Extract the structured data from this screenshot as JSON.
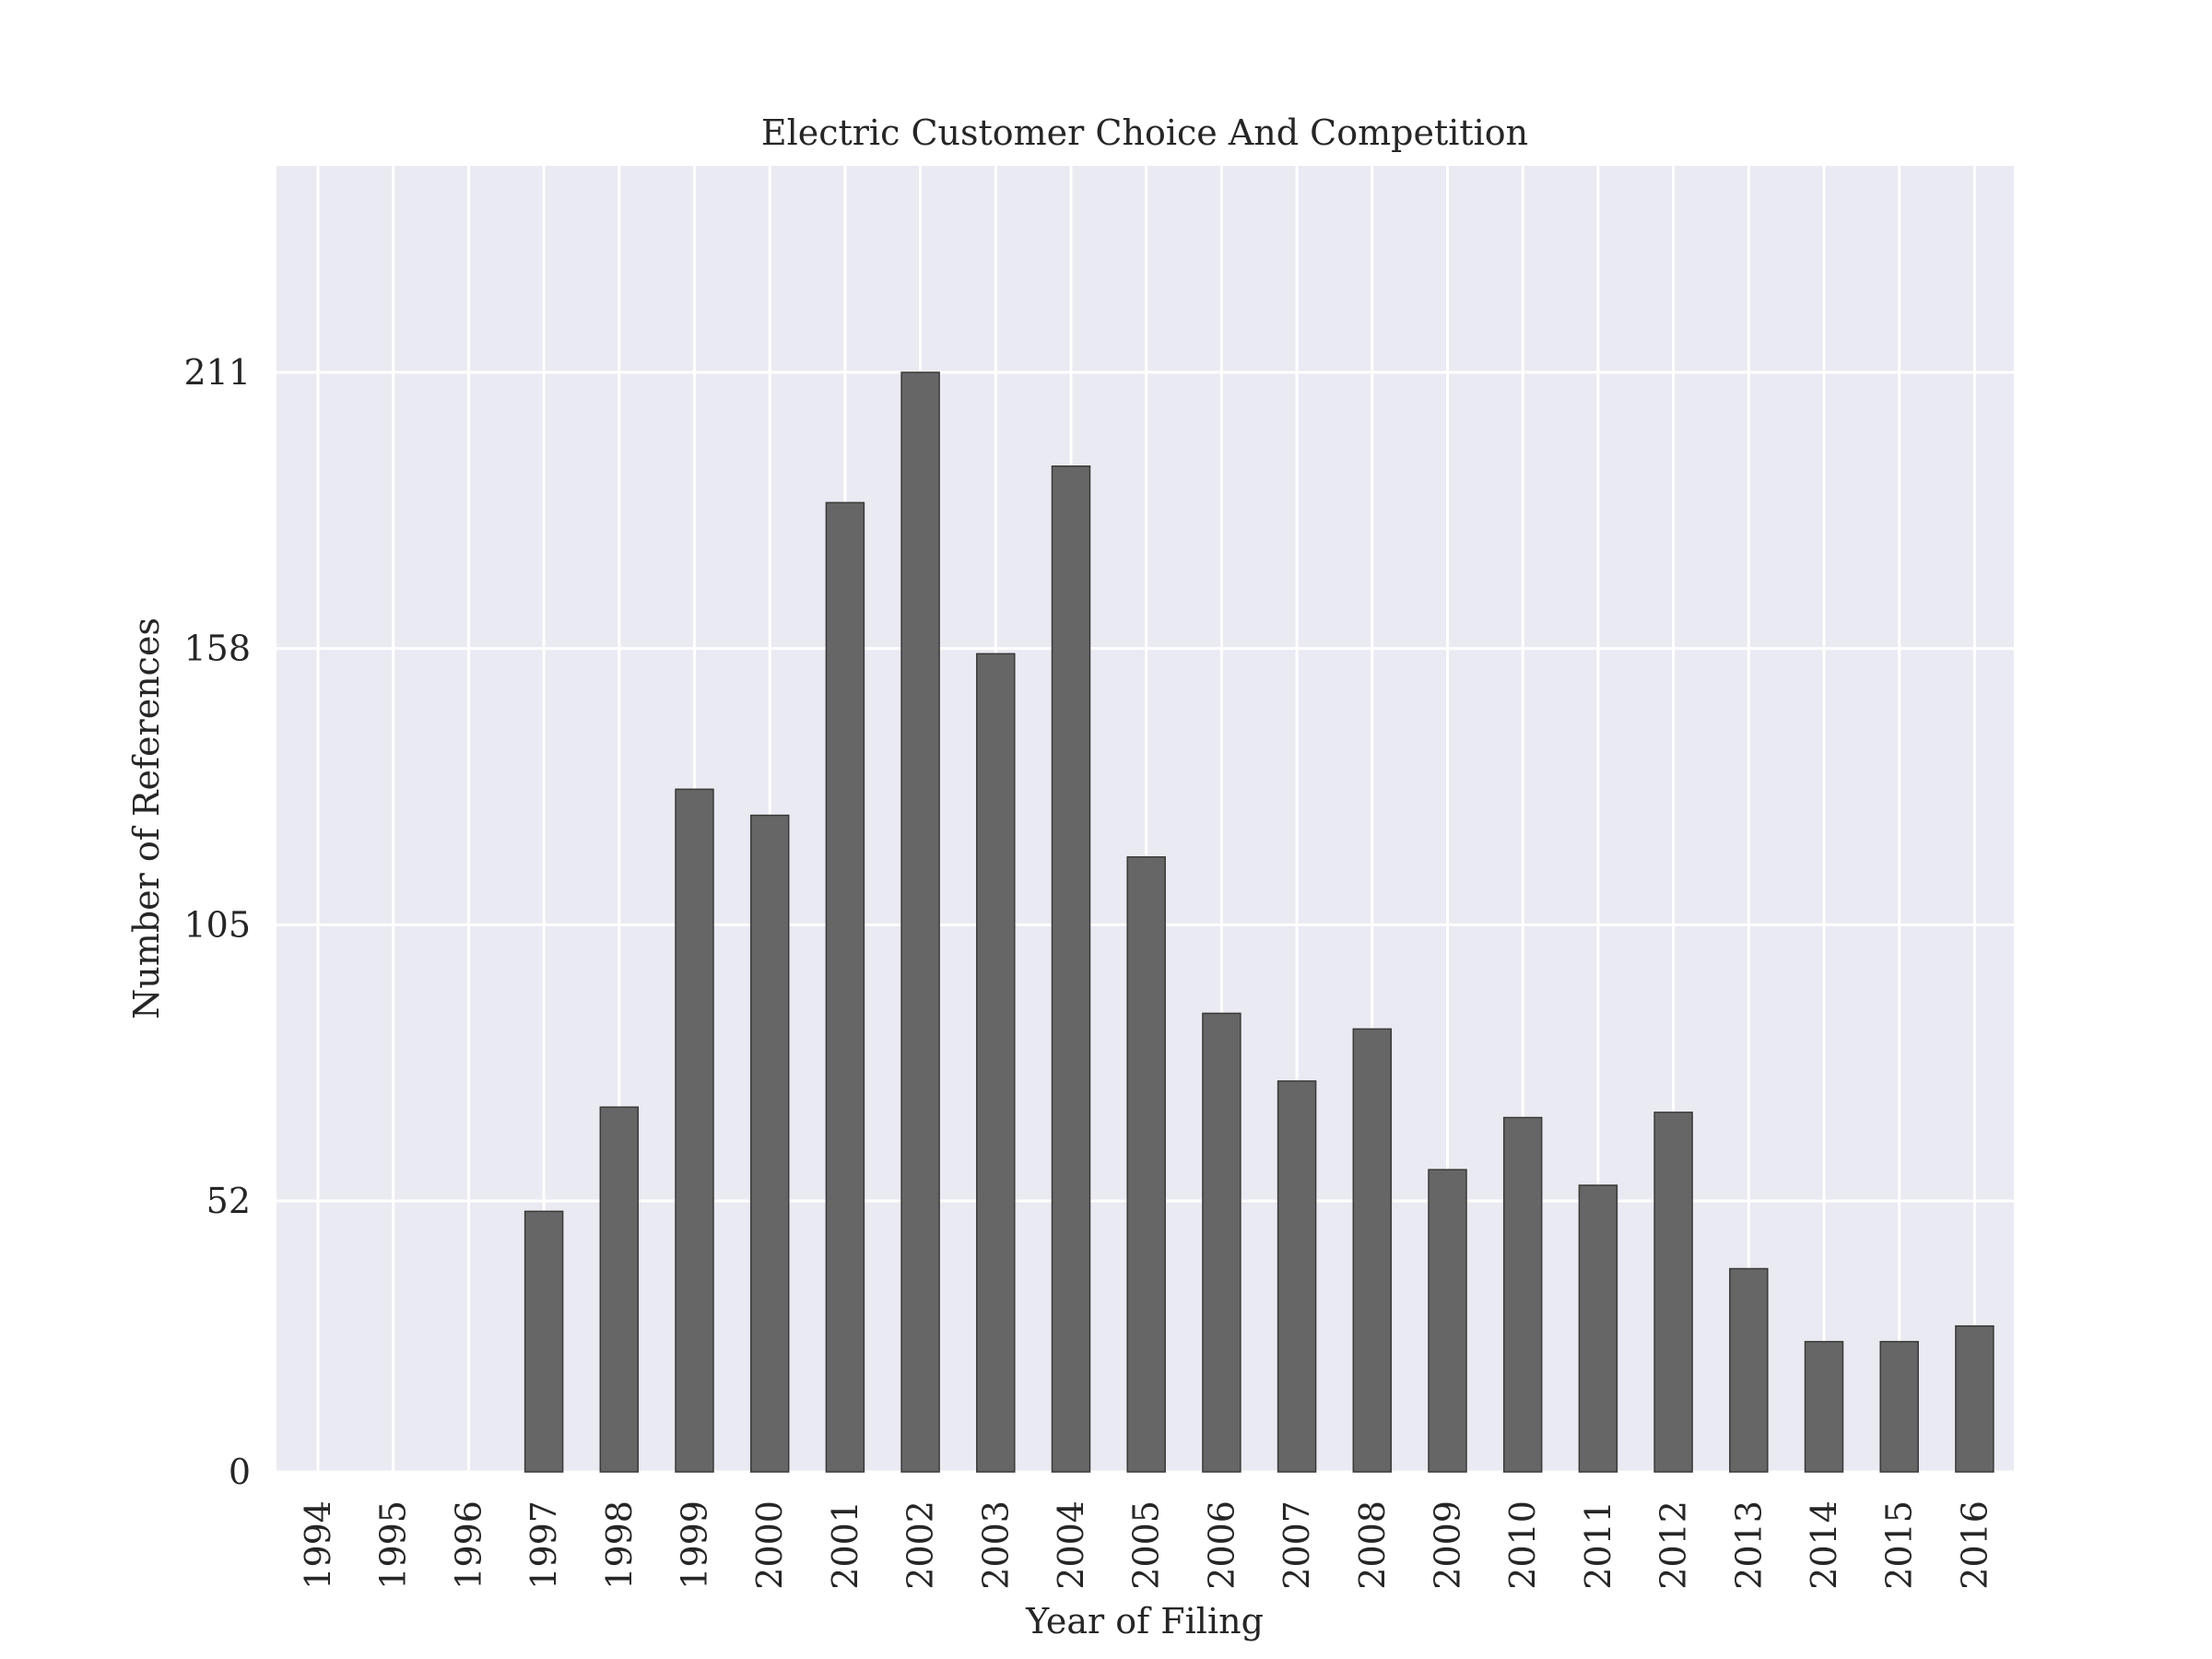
{
  "chart_data": {
    "type": "bar",
    "title": "Electric Customer Choice And Competition",
    "xlabel": "Year of Filing",
    "ylabel": "Number of References",
    "categories": [
      "1994",
      "1995",
      "1996",
      "1997",
      "1998",
      "1999",
      "2000",
      "2001",
      "2002",
      "2003",
      "2004",
      "2005",
      "2006",
      "2007",
      "2008",
      "2009",
      "2010",
      "2011",
      "2012",
      "2013",
      "2014",
      "2015",
      "2016"
    ],
    "values": [
      0,
      0,
      0,
      50,
      70,
      131,
      126,
      186,
      211,
      157,
      193,
      118,
      88,
      75,
      85,
      58,
      68,
      55,
      69,
      39,
      25,
      25,
      28
    ],
    "yticks": [
      0,
      52,
      105,
      158,
      211
    ],
    "ylim": [
      0,
      250
    ],
    "grid": true,
    "colors": {
      "background": "#eaeaf2",
      "grid": "#ffffff",
      "bar": "#666666",
      "bar_edge": "#3a3a3a"
    }
  }
}
